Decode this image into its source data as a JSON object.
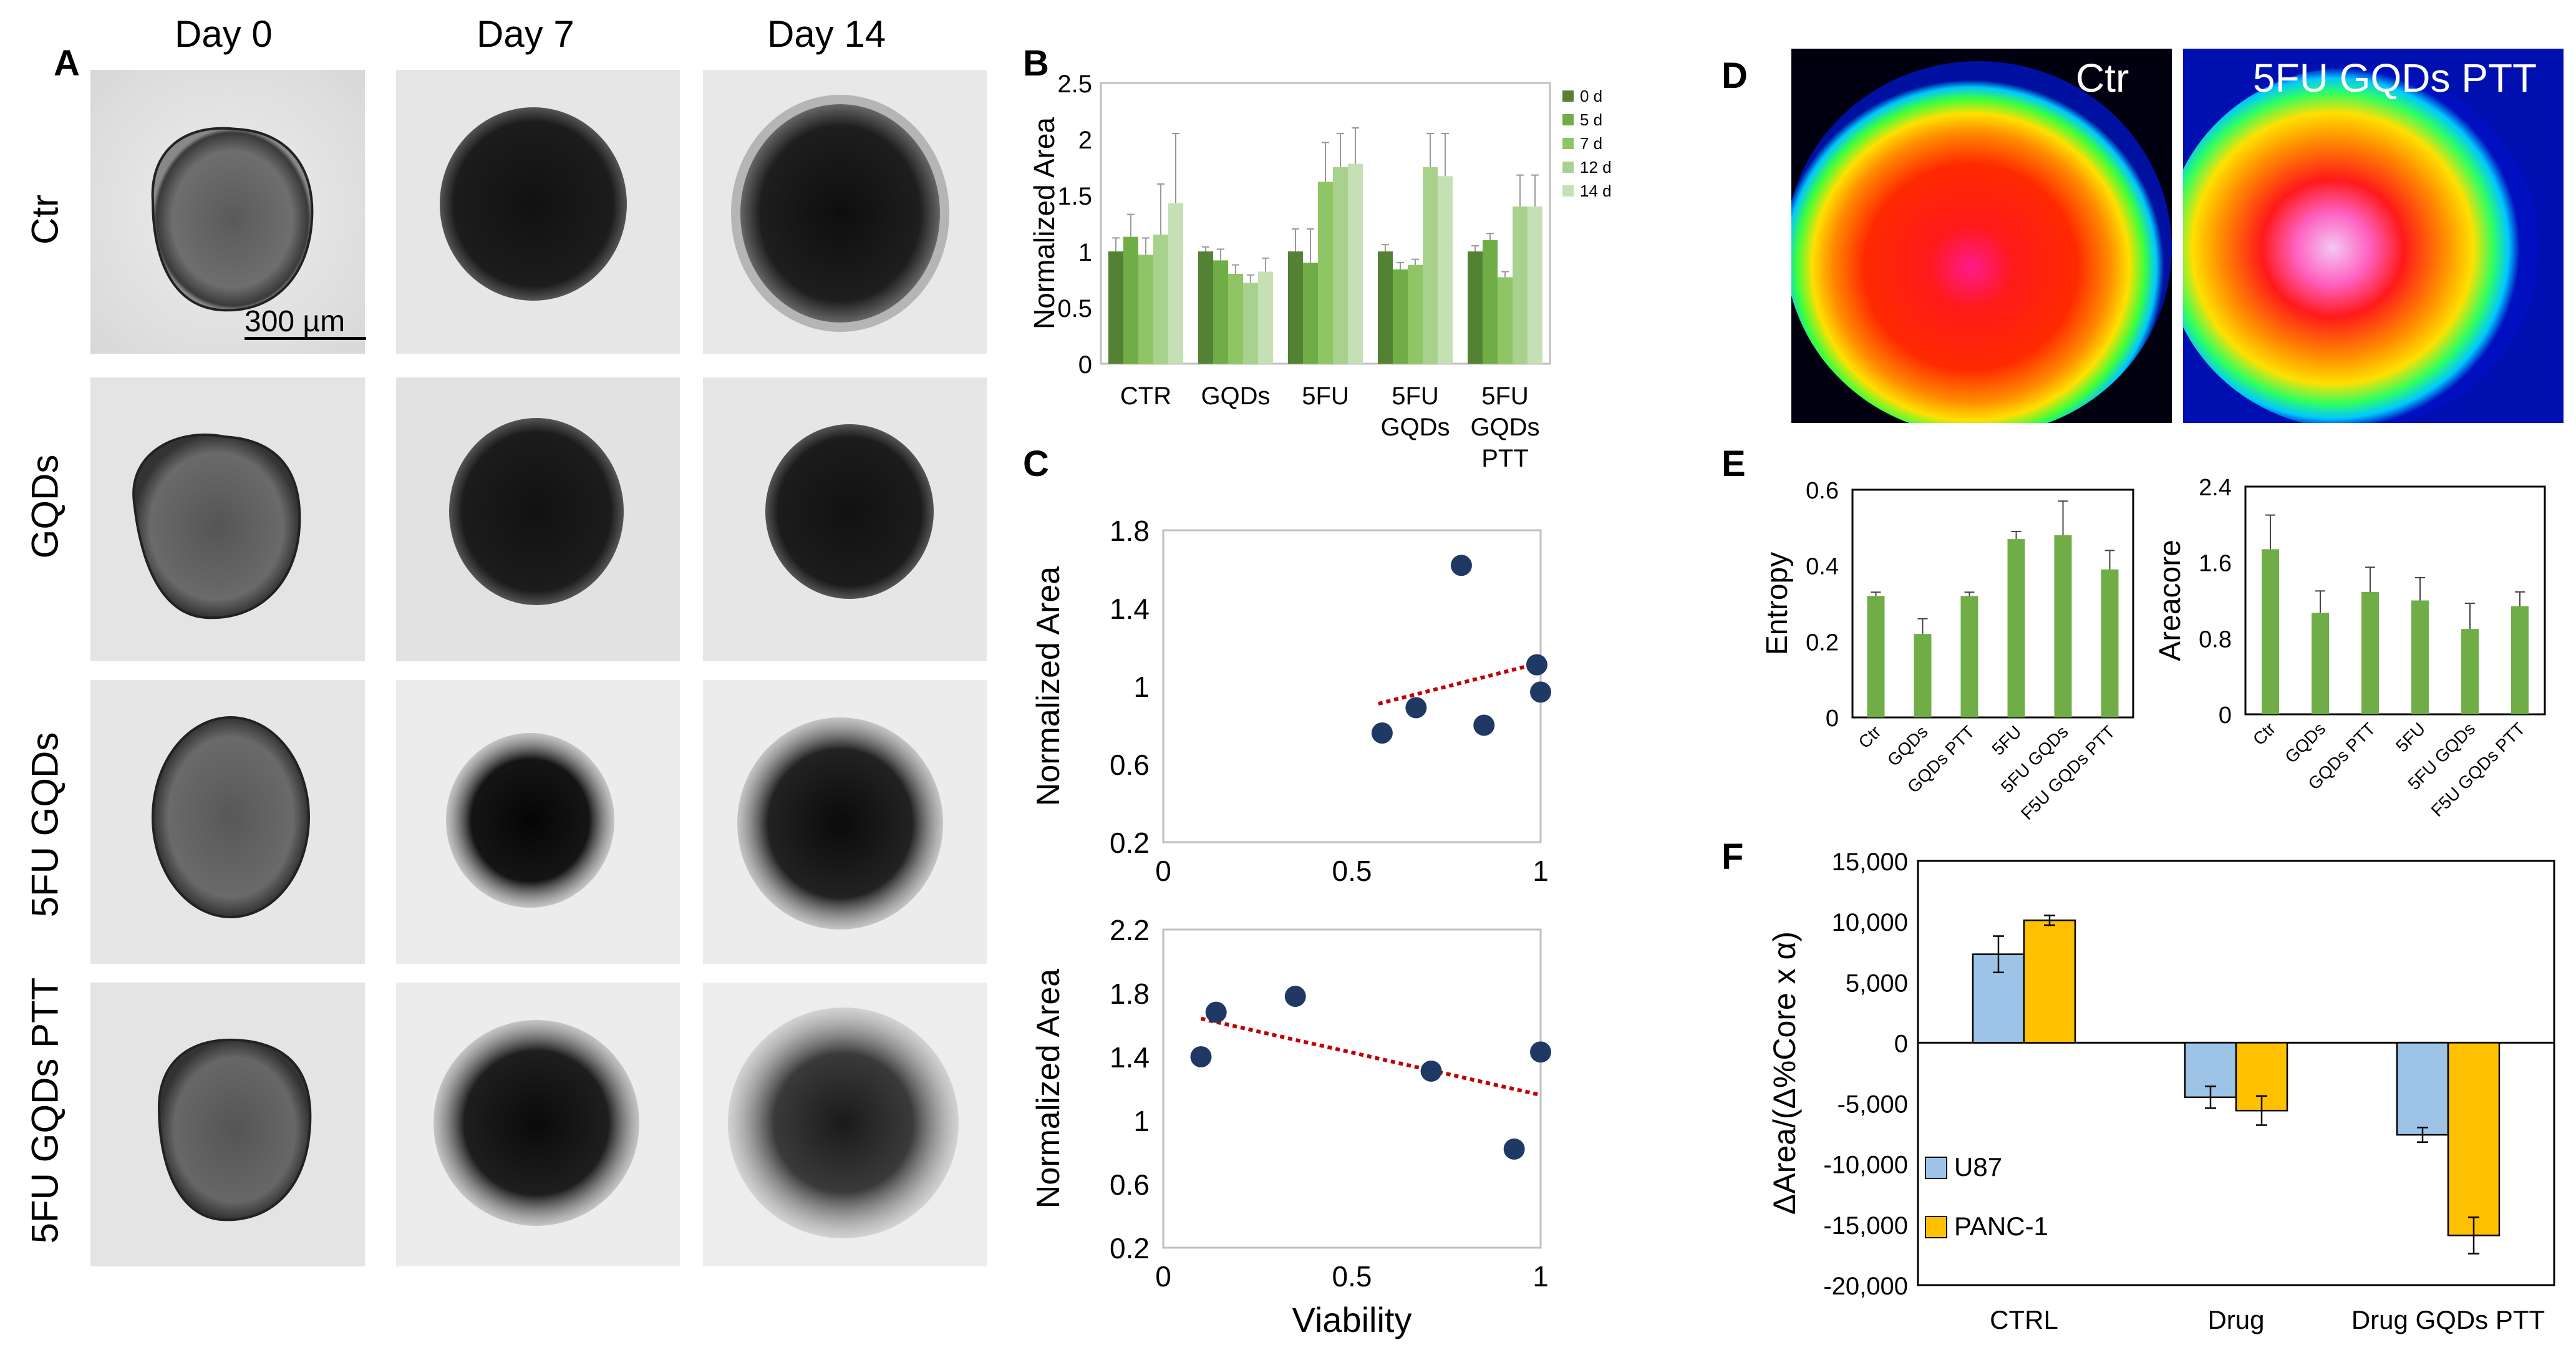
{
  "panels": {
    "A": "A",
    "B": "B",
    "C": "C",
    "D": "D",
    "E": "E",
    "F": "F"
  },
  "panel_a": {
    "columns": [
      "Day 0",
      "Day 7",
      "Day 14"
    ],
    "rows": [
      "Ctr",
      "GQDs",
      "5FU GQDs",
      "5FU GQDs PTT"
    ],
    "scale_bar": "300 µm"
  },
  "panel_d": {
    "labels": [
      "Ctr",
      "5FU GQDs PTT"
    ]
  },
  "colors": {
    "bar_green": "#71ad47",
    "bar_blue": "#9dc3e6",
    "bar_orange": "#ffc000",
    "dot_navy": "#1f3864",
    "trend_red": "#c00000"
  },
  "chart_data": [
    {
      "id": "B",
      "type": "bar",
      "ylabel": "Normalized Area",
      "ylim": [
        0,
        2.5
      ],
      "yticks": [
        "0",
        "0.5",
        "1",
        "1.5",
        "2",
        "2.5"
      ],
      "categories": [
        "CTR",
        "GQDs",
        "5FU",
        "5FU GQDs",
        "5FU GQDs PTT"
      ],
      "category_lines": [
        [
          "CTR"
        ],
        [
          "GQDs"
        ],
        [
          "5FU"
        ],
        [
          "5FU",
          "GQDs"
        ],
        [
          "5FU",
          "GQDs",
          "PTT"
        ]
      ],
      "series": [
        {
          "name": "0 d",
          "color": "#548235",
          "values": [
            1.0,
            1.0,
            1.0,
            1.0,
            1.0
          ],
          "errors": [
            0.12,
            0.04,
            0.2,
            0.06,
            0.05
          ]
        },
        {
          "name": "5 d",
          "color": "#70ad47",
          "values": [
            1.13,
            0.92,
            0.9,
            0.84,
            1.1
          ],
          "errors": [
            0.2,
            0.1,
            0.3,
            0.06,
            0.06
          ]
        },
        {
          "name": "7 d",
          "color": "#8fc565",
          "values": [
            0.97,
            0.8,
            1.62,
            0.88,
            0.77
          ],
          "errors": [
            0.15,
            0.08,
            0.35,
            0.05,
            0.05
          ]
        },
        {
          "name": "12 d",
          "color": "#a9d18e",
          "values": [
            1.15,
            0.72,
            1.75,
            1.75,
            1.4
          ],
          "errors": [
            0.45,
            0.07,
            0.3,
            0.3,
            0.28
          ]
        },
        {
          "name": "14 d",
          "color": "#c5e0b4",
          "values": [
            1.43,
            0.82,
            1.78,
            1.67,
            1.4
          ],
          "errors": [
            0.62,
            0.12,
            0.32,
            0.38,
            0.28
          ]
        }
      ]
    },
    {
      "id": "C1",
      "type": "scatter",
      "ylabel": "Normalized Area",
      "xlim": [
        0,
        1
      ],
      "ylim": [
        0.2,
        1.8
      ],
      "xticks": [
        "0",
        "0.5",
        "1"
      ],
      "yticks": [
        "0.2",
        "0.6",
        "1",
        "1.4",
        "1.8"
      ],
      "points": [
        [
          0.58,
          0.76
        ],
        [
          0.67,
          0.89
        ],
        [
          0.79,
          1.62
        ],
        [
          0.85,
          0.8
        ],
        [
          0.99,
          1.11
        ],
        [
          1.0,
          0.97
        ]
      ],
      "trendline": [
        [
          0.57,
          0.91
        ],
        [
          1.0,
          1.12
        ]
      ]
    },
    {
      "id": "C2",
      "type": "scatter",
      "xlabel": "Viability",
      "ylabel": "Normalized Area",
      "xlim": [
        0,
        1
      ],
      "ylim": [
        0.2,
        2.2
      ],
      "xticks": [
        "0",
        "0.5",
        "1"
      ],
      "yticks": [
        "0.2",
        "0.6",
        "1",
        "1.4",
        "1.8",
        "2.2"
      ],
      "points": [
        [
          0.1,
          1.4
        ],
        [
          0.14,
          1.68
        ],
        [
          0.35,
          1.78
        ],
        [
          0.71,
          1.31
        ],
        [
          0.93,
          0.82
        ],
        [
          1.0,
          1.43
        ]
      ],
      "trendline": [
        [
          0.1,
          1.64
        ],
        [
          1.0,
          1.16
        ]
      ]
    },
    {
      "id": "E1",
      "type": "bar",
      "ylabel": "Entropy",
      "ylim": [
        0,
        0.6
      ],
      "yticks": [
        "0",
        "0.2",
        "0.4",
        "0.6"
      ],
      "categories": [
        "Ctr",
        "GQDs",
        "GQDs PTT",
        "5FU",
        "5FU GQDs",
        "F5U GQDs PTT"
      ],
      "values": [
        0.32,
        0.22,
        0.32,
        0.47,
        0.48,
        0.39
      ],
      "errors": [
        0.01,
        0.04,
        0.01,
        0.02,
        0.09,
        0.05
      ]
    },
    {
      "id": "E2",
      "type": "bar",
      "ylabel": "Areacore",
      "ylim": [
        0,
        2.4
      ],
      "yticks": [
        "0",
        "0.8",
        "1.6",
        "2.4"
      ],
      "categories": [
        "Ctr",
        "GQDs",
        "GQDs PTT",
        "5FU",
        "5FU GQDs",
        "F5U GQDs PTT"
      ],
      "values": [
        1.74,
        1.07,
        1.29,
        1.2,
        0.9,
        1.14
      ],
      "errors": [
        0.36,
        0.23,
        0.26,
        0.24,
        0.27,
        0.15
      ]
    },
    {
      "id": "F",
      "type": "bar",
      "ylabel": "ΔArea/(Δ%Core x α)",
      "ylim": [
        -20000,
        15000
      ],
      "yticks": [
        "15,000",
        "10,000",
        "5,000",
        "0",
        "-5,000",
        "-10,000",
        "-15,000",
        "-20,000"
      ],
      "categories": [
        "CTRL",
        "Drug",
        "Drug GQDs PTT"
      ],
      "series": [
        {
          "name": "U87",
          "color": "#9dc3e6",
          "values": [
            7300,
            -4500,
            -7600
          ],
          "errors": [
            1500,
            900,
            600
          ]
        },
        {
          "name": "PANC-1",
          "color": "#ffc000",
          "values": [
            10100,
            -5600,
            -15900
          ],
          "errors": [
            400,
            1200,
            1500
          ]
        }
      ]
    }
  ]
}
